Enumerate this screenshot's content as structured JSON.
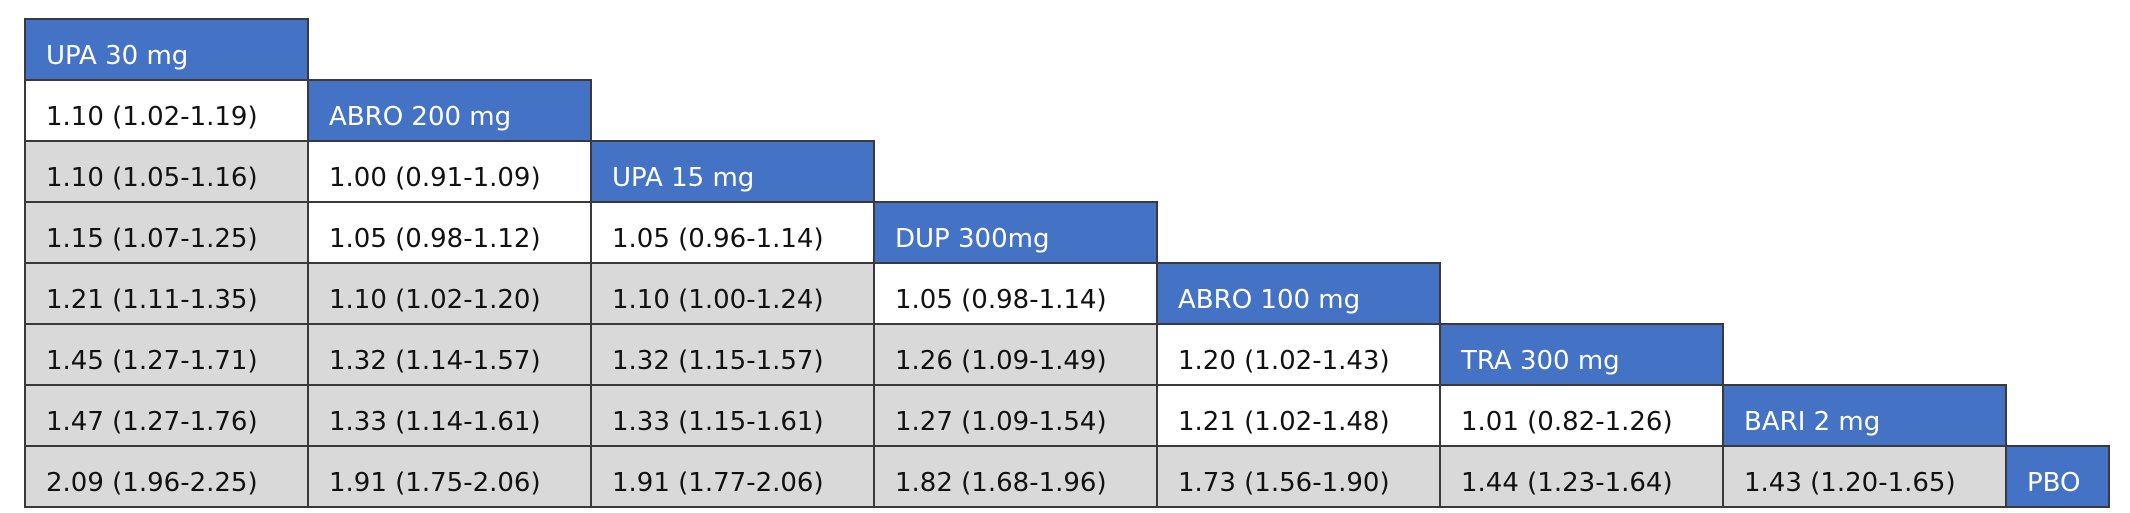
{
  "table": {
    "rows": [
      {
        "header": "UPA 30 mg",
        "cells": [],
        "shaded": []
      },
      {
        "header": "ABRO 200 mg",
        "cells": [
          "1.10 (1.02-1.19)"
        ],
        "shaded": [
          false
        ]
      },
      {
        "header": "UPA 15 mg",
        "cells": [
          "1.10 (1.05-1.16)",
          "1.00 (0.91-1.09)"
        ],
        "shaded": [
          true,
          false
        ]
      },
      {
        "header": "DUP 300mg",
        "cells": [
          "1.15 (1.07-1.25)",
          "1.05 (0.98-1.12)",
          "1.05 (0.96-1.14)"
        ],
        "shaded": [
          true,
          false,
          false
        ]
      },
      {
        "header": "ABRO 100 mg",
        "cells": [
          "1.21 (1.11-1.35)",
          "1.10 (1.02-1.20)",
          "1.10 (1.00-1.24)",
          "1.05 (0.98-1.14)"
        ],
        "shaded": [
          true,
          true,
          true,
          false
        ]
      },
      {
        "header": "TRA 300 mg",
        "cells": [
          "1.45 (1.27-1.71)",
          "1.32 (1.14-1.57)",
          "1.32 (1.15-1.57)",
          "1.26 (1.09-1.49)",
          "1.20 (1.02-1.43)"
        ],
        "shaded": [
          true,
          true,
          true,
          true,
          false
        ]
      },
      {
        "header": "BARI 2 mg",
        "cells": [
          "1.47 (1.27-1.76)",
          "1.33 (1.14-1.61)",
          "1.33 (1.15-1.61)",
          "1.27 (1.09-1.54)",
          "1.21 (1.02-1.48)",
          "1.01 (0.82-1.26)"
        ],
        "shaded": [
          true,
          true,
          true,
          true,
          false,
          false
        ]
      },
      {
        "header": "PBO",
        "cells": [
          "2.09 (1.96-2.25)",
          "1.91 (1.75-2.06)",
          "1.91 (1.77-2.06)",
          "1.82 (1.68-1.96)",
          "1.73 (1.56-1.90)",
          "1.44 (1.23-1.64)",
          "1.43 (1.20-1.65)"
        ],
        "shaded": [
          true,
          true,
          true,
          true,
          true,
          true,
          true
        ]
      }
    ],
    "header_color": "#4472c4",
    "shade_color": "#d9d9d9"
  }
}
